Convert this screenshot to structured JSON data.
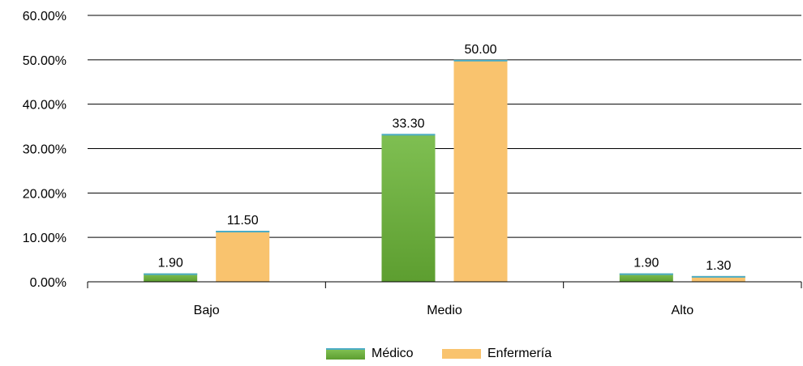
{
  "chart_data": {
    "type": "bar",
    "categories": [
      "Bajo",
      "Medio",
      "Alto"
    ],
    "series": [
      {
        "name": "Médico",
        "values": [
          1.9,
          33.3,
          1.9
        ],
        "labels": [
          "1.90",
          "33.30",
          "1.90"
        ],
        "color": "#6aaa3a"
      },
      {
        "name": "Enfermería",
        "values": [
          11.5,
          50.0,
          1.3
        ],
        "labels": [
          "11.50",
          "50.00",
          "1.30"
        ],
        "color": "#f9c36e"
      }
    ],
    "y_ticks": [
      "0.00%",
      "10.00%",
      "20.00%",
      "30.00%",
      "40.00%",
      "50.00%",
      "60.00%"
    ],
    "ylim": [
      0,
      60
    ],
    "grid": true,
    "legend_position": "bottom"
  }
}
